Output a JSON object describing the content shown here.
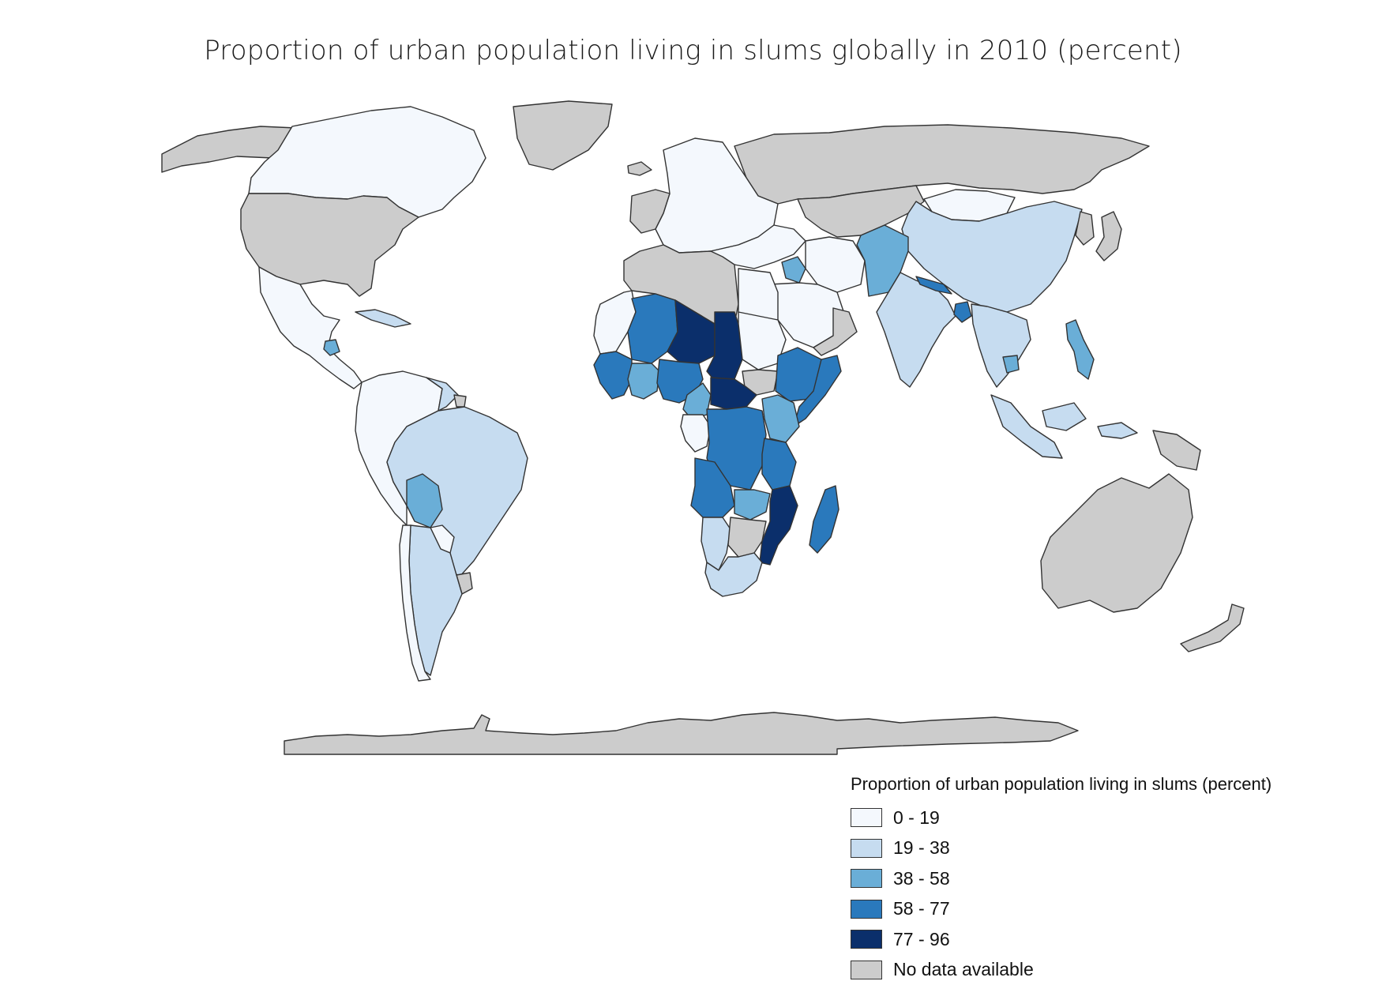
{
  "title": "Proportion of urban population living in slums globally in 2010 (percent)",
  "legend": {
    "title": "Proportion of urban population living in slums (percent)",
    "items": [
      {
        "label": "0 - 19",
        "color": "#f4f8fd"
      },
      {
        "label": "19 - 38",
        "color": "#c6dcf0"
      },
      {
        "label": "38 - 58",
        "color": "#6aaed7"
      },
      {
        "label": "58 - 77",
        "color": "#2a79bc"
      },
      {
        "label": "77 - 96",
        "color": "#0b2f6b"
      },
      {
        "label": "No data available",
        "color": "#cccccc"
      }
    ]
  },
  "regions": [
    {
      "name": "canada",
      "cls": 0
    },
    {
      "name": "usa",
      "cls": 5
    },
    {
      "name": "alaska",
      "cls": 5
    },
    {
      "name": "greenland",
      "cls": 5
    },
    {
      "name": "mexico-central-america",
      "cls": 0
    },
    {
      "name": "guatemala",
      "cls": 2
    },
    {
      "name": "caribbean",
      "cls": 1
    },
    {
      "name": "colombia-venezuela-ecuador-peru",
      "cls": 0
    },
    {
      "name": "guyana",
      "cls": 1
    },
    {
      "name": "french-guiana",
      "cls": 5
    },
    {
      "name": "brazil",
      "cls": 1
    },
    {
      "name": "bolivia",
      "cls": 2
    },
    {
      "name": "paraguay",
      "cls": 0
    },
    {
      "name": "uruguay",
      "cls": 5
    },
    {
      "name": "argentina",
      "cls": 1
    },
    {
      "name": "chile",
      "cls": 0
    },
    {
      "name": "russia",
      "cls": 5
    },
    {
      "name": "europe",
      "cls": 0
    },
    {
      "name": "iceland",
      "cls": 5
    },
    {
      "name": "western-europe",
      "cls": 5
    },
    {
      "name": "kazakhstan-central-asia",
      "cls": 5
    },
    {
      "name": "mongolia",
      "cls": 0
    },
    {
      "name": "china",
      "cls": 1
    },
    {
      "name": "japan",
      "cls": 5
    },
    {
      "name": "korea",
      "cls": 5
    },
    {
      "name": "turkey-middle-east",
      "cls": 0
    },
    {
      "name": "iraq",
      "cls": 2
    },
    {
      "name": "saudi-arabia",
      "cls": 0
    },
    {
      "name": "yemen-oman",
      "cls": 5
    },
    {
      "name": "iran",
      "cls": 0
    },
    {
      "name": "pakistan-afghanistan",
      "cls": 2
    },
    {
      "name": "india",
      "cls": 1
    },
    {
      "name": "nepal",
      "cls": 3
    },
    {
      "name": "bangladesh",
      "cls": 3
    },
    {
      "name": "myanmar-southeast-asia",
      "cls": 1
    },
    {
      "name": "cambodia",
      "cls": 2
    },
    {
      "name": "philippines",
      "cls": 2
    },
    {
      "name": "indonesia",
      "cls": 1
    },
    {
      "name": "papua-new-guinea",
      "cls": 5
    },
    {
      "name": "australia",
      "cls": 5
    },
    {
      "name": "new-zealand",
      "cls": 5
    },
    {
      "name": "antarctica",
      "cls": 5
    },
    {
      "name": "morocco-algeria-libya",
      "cls": 5
    },
    {
      "name": "egypt",
      "cls": 0
    },
    {
      "name": "mauritania-senegal",
      "cls": 0
    },
    {
      "name": "mali",
      "cls": 3
    },
    {
      "name": "niger",
      "cls": 4
    },
    {
      "name": "chad",
      "cls": 4
    },
    {
      "name": "sudan",
      "cls": 0
    },
    {
      "name": "south-sudan",
      "cls": 5
    },
    {
      "name": "ethiopia",
      "cls": 3
    },
    {
      "name": "somalia",
      "cls": 3
    },
    {
      "name": "west-africa-coast",
      "cls": 3
    },
    {
      "name": "ghana-ivory-coast",
      "cls": 2
    },
    {
      "name": "nigeria",
      "cls": 3
    },
    {
      "name": "car",
      "cls": 4
    },
    {
      "name": "cameroon",
      "cls": 2
    },
    {
      "name": "gabon-congo",
      "cls": 0
    },
    {
      "name": "drc",
      "cls": 3
    },
    {
      "name": "uganda-kenya",
      "cls": 2
    },
    {
      "name": "tanzania",
      "cls": 3
    },
    {
      "name": "angola",
      "cls": 3
    },
    {
      "name": "zambia",
      "cls": 2
    },
    {
      "name": "malawi-mozambique",
      "cls": 4
    },
    {
      "name": "madagascar",
      "cls": 3
    },
    {
      "name": "namibia",
      "cls": 1
    },
    {
      "name": "botswana-zimbabwe",
      "cls": 5
    },
    {
      "name": "south-africa",
      "cls": 1
    }
  ]
}
